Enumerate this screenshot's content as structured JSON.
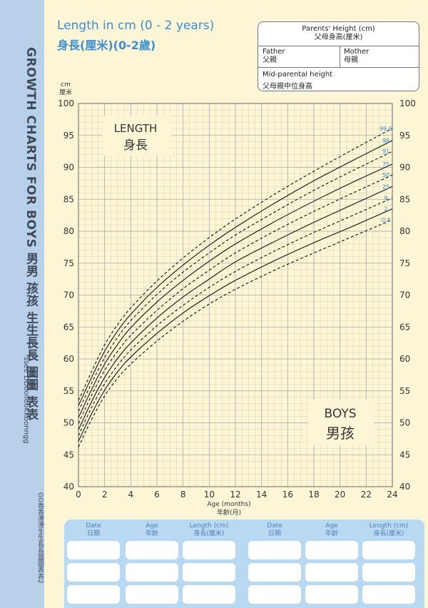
{
  "side": {
    "title": "GROWTH CHARTS FOR BOYS 男男 孩孩 生生長長 圖圖 表表",
    "subtitle": "ssee DDoollooKKoonngg",
    "footer": "GG香香港港生生長長圖圖表表2"
  },
  "header": {
    "title_en": "Length in cm (0 - 2 years)",
    "title_zh": "身長(厘米)(0-2歲)"
  },
  "parents_box": {
    "title_en": "Parents' Height (cm)",
    "title_zh": "父母身高(厘米)",
    "father_en": "Father",
    "father_zh": "父親",
    "mother_en": "Mother",
    "mother_zh": "母親",
    "mid_en": "Mid-parental height",
    "mid_zh": "父母親中位身高"
  },
  "labels": {
    "length_en": "LENGTH",
    "length_zh": "身長",
    "boys_en": "BOYS",
    "boys_zh": "男孩"
  },
  "log_table": {
    "headers": [
      {
        "en": "Date",
        "zh": "日期"
      },
      {
        "en": "Age",
        "zh": "年齡"
      },
      {
        "en": "Length (cm)",
        "zh": "身長(厘米)"
      },
      {
        "en": "Date",
        "zh": "日期"
      },
      {
        "en": "Age",
        "zh": "年齡"
      },
      {
        "en": "Length (cm)",
        "zh": "身長(厘米)"
      }
    ],
    "rows": 3
  },
  "colors": {
    "grid_major": "#aaaaaa",
    "grid_minor": "#d9d2b0",
    "accent_blue": "#3b8fd1",
    "side_strip": "#b9d0ea",
    "background": "#fdf6d6"
  },
  "chart_data": {
    "type": "line",
    "title": "Length in cm (0 - 2 years)",
    "xlabel": "Age (months)",
    "xlabel_zh": "年齡(月)",
    "ylabel": "cm",
    "ylabel_zh": "厘米",
    "xlim": [
      0,
      24
    ],
    "ylim": [
      40,
      100
    ],
    "x_ticks": [
      0,
      2,
      4,
      6,
      8,
      10,
      12,
      14,
      16,
      18,
      20,
      22,
      24
    ],
    "y_ticks": [
      40,
      45,
      50,
      55,
      60,
      65,
      70,
      75,
      80,
      85,
      90,
      95,
      100
    ],
    "grid": true,
    "x": [
      0,
      1,
      2,
      3,
      4,
      6,
      8,
      10,
      12,
      15,
      18,
      21,
      24
    ],
    "series": [
      {
        "name": "99.6",
        "style": "dashed",
        "values": [
          53.5,
          58.0,
          62.2,
          65.4,
          68.0,
          72.2,
          75.8,
          79.0,
          81.9,
          85.8,
          89.4,
          92.8,
          96.1
        ]
      },
      {
        "name": "98",
        "style": "solid",
        "values": [
          52.7,
          57.1,
          61.2,
          64.4,
          67.0,
          71.2,
          74.7,
          77.8,
          80.6,
          84.4,
          87.9,
          91.1,
          94.2
        ]
      },
      {
        "name": "91",
        "style": "dashed",
        "values": [
          51.8,
          56.2,
          60.2,
          63.4,
          66.0,
          70.1,
          73.6,
          76.6,
          79.4,
          83.0,
          86.4,
          89.5,
          92.5
        ]
      },
      {
        "name": "75",
        "style": "solid",
        "values": [
          50.8,
          55.2,
          59.2,
          62.3,
          64.9,
          68.9,
          72.3,
          75.3,
          78.0,
          81.5,
          84.7,
          87.7,
          90.5
        ]
      },
      {
        "name": "50",
        "style": "dashed",
        "values": [
          49.9,
          54.3,
          58.2,
          61.2,
          63.7,
          67.6,
          71.0,
          73.9,
          76.6,
          80.0,
          83.1,
          86.0,
          88.8
        ]
      },
      {
        "name": "25",
        "style": "solid",
        "values": [
          48.9,
          53.3,
          57.1,
          60.1,
          62.5,
          66.4,
          69.7,
          72.5,
          75.2,
          78.4,
          81.4,
          84.2,
          87.0
        ]
      },
      {
        "name": "9",
        "style": "dashed",
        "values": [
          48.0,
          52.4,
          56.1,
          59.0,
          61.4,
          65.2,
          68.4,
          71.2,
          73.7,
          76.9,
          79.8,
          82.5,
          85.2
        ]
      },
      {
        "name": "2",
        "style": "solid",
        "values": [
          47.1,
          51.4,
          55.1,
          58.0,
          60.3,
          64.0,
          67.2,
          69.9,
          72.3,
          75.4,
          78.2,
          80.8,
          83.5
        ]
      },
      {
        "name": "0.4",
        "style": "dashed",
        "values": [
          46.2,
          50.5,
          54.2,
          57.0,
          59.2,
          62.8,
          65.9,
          68.6,
          70.9,
          73.9,
          76.6,
          79.2,
          81.8
        ]
      }
    ]
  }
}
